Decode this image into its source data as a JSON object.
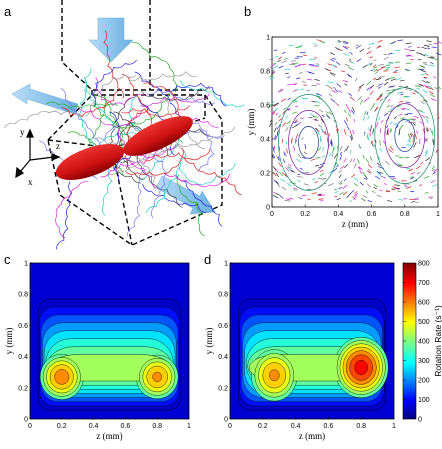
{
  "panel_labels": {
    "a": "a",
    "b": "b",
    "c": "c",
    "d": "d"
  },
  "panel_a": {
    "axes": {
      "x": "x",
      "y": "y",
      "z": "z"
    }
  },
  "colors": {
    "frame": "#000000",
    "arrow_fill": "#8ec5ec",
    "red_object": "#cc1111"
  },
  "chart_data": [
    {
      "panel": "b",
      "type": "scatter",
      "title": "",
      "xlabel": "z (mm)",
      "ylabel": "y (mm)",
      "xlim": [
        0,
        1
      ],
      "ylim": [
        0,
        1
      ],
      "xticks": [
        "0",
        "0.2",
        "0.4",
        "0.6",
        "0.8",
        "1"
      ],
      "yticks": [
        "0",
        "0.2",
        "0.4",
        "0.6",
        "0.8",
        "1"
      ],
      "description_series": [
        {
          "vortex_center": [
            0.22,
            0.38
          ]
        },
        {
          "vortex_center": [
            0.8,
            0.42
          ]
        }
      ]
    },
    {
      "panel": "c",
      "type": "heatmap",
      "xlabel": "z (mm)",
      "ylabel": "y (mm)",
      "xlim": [
        0,
        1
      ],
      "ylim": [
        0,
        1
      ],
      "xticks": [
        "0",
        "0.2",
        "0.4",
        "0.6",
        "0.8",
        "1"
      ],
      "yticks": [
        "0",
        "0.2",
        "0.4",
        "0.6",
        "0.8",
        "1"
      ],
      "peaks": [
        {
          "z": 0.2,
          "y": 0.27,
          "value": 620
        },
        {
          "z": 0.8,
          "y": 0.27,
          "value": 600
        }
      ]
    },
    {
      "panel": "d",
      "type": "heatmap",
      "xlabel": "z (mm)",
      "ylabel": "y (mm)",
      "xlim": [
        0,
        1
      ],
      "ylim": [
        0,
        1
      ],
      "xticks": [
        "0",
        "0.2",
        "0.4",
        "0.6",
        "0.8",
        "1"
      ],
      "yticks": [
        "0",
        "0.2",
        "0.4",
        "0.6",
        "0.8",
        "1"
      ],
      "peaks": [
        {
          "z": 0.27,
          "y": 0.28,
          "value": 600
        },
        {
          "z": 0.8,
          "y": 0.33,
          "value": 720
        }
      ],
      "colorbar": {
        "label": "Rotation Rate (s⁻¹)",
        "ticks": [
          "0",
          "100",
          "200",
          "300",
          "400",
          "500",
          "600",
          "700",
          "800"
        ],
        "range": [
          0,
          800
        ]
      }
    }
  ]
}
